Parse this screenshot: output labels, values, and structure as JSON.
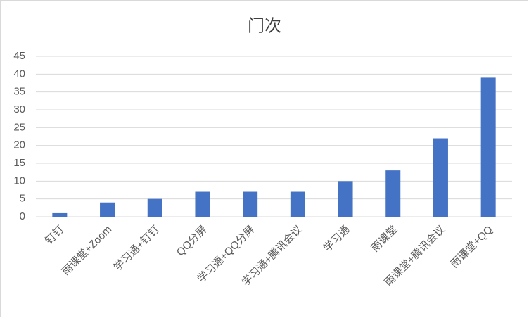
{
  "chart_data": {
    "type": "bar",
    "title": "门次",
    "categories": [
      "钉钉",
      "雨课堂+Zoom",
      "学习通+钉钉",
      "QQ分屏",
      "学习通+QQ分屏",
      "学习通+腾讯会议",
      "学习通",
      "雨课堂",
      "雨课堂+腾讯会议",
      "雨课堂+QQ"
    ],
    "values": [
      1,
      4,
      5,
      7,
      7,
      7,
      10,
      13,
      22,
      39
    ],
    "color": "#4472c4",
    "ylim": [
      0,
      45
    ],
    "yticks": [
      0,
      5,
      10,
      15,
      20,
      25,
      30,
      35,
      40,
      45
    ],
    "grid": true
  }
}
